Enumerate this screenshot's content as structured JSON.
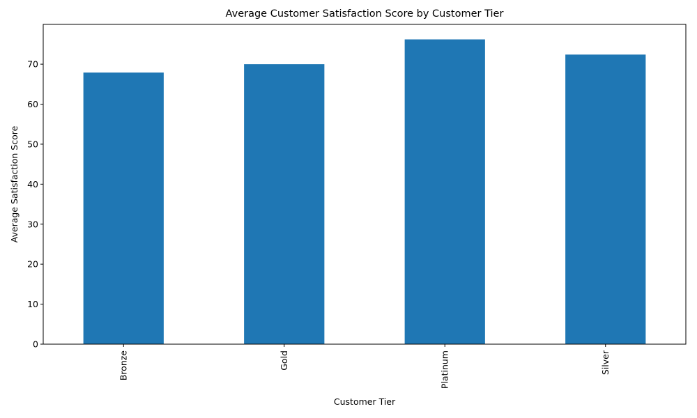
{
  "chart_data": {
    "type": "bar",
    "title": "Average Customer Satisfaction Score by Customer Tier",
    "xlabel": "Customer Tier",
    "ylabel": "Average Satisfaction Score",
    "categories": [
      "Bronze",
      "Gold",
      "Platinum",
      "Silver"
    ],
    "values": [
      67.9,
      70.0,
      76.2,
      72.4
    ],
    "ylim": [
      0,
      80
    ],
    "yticks": [
      0,
      10,
      20,
      30,
      40,
      50,
      60,
      70
    ],
    "bar_color": "#1f77b4",
    "grid": false,
    "x_tick_rotation": "vertical"
  }
}
